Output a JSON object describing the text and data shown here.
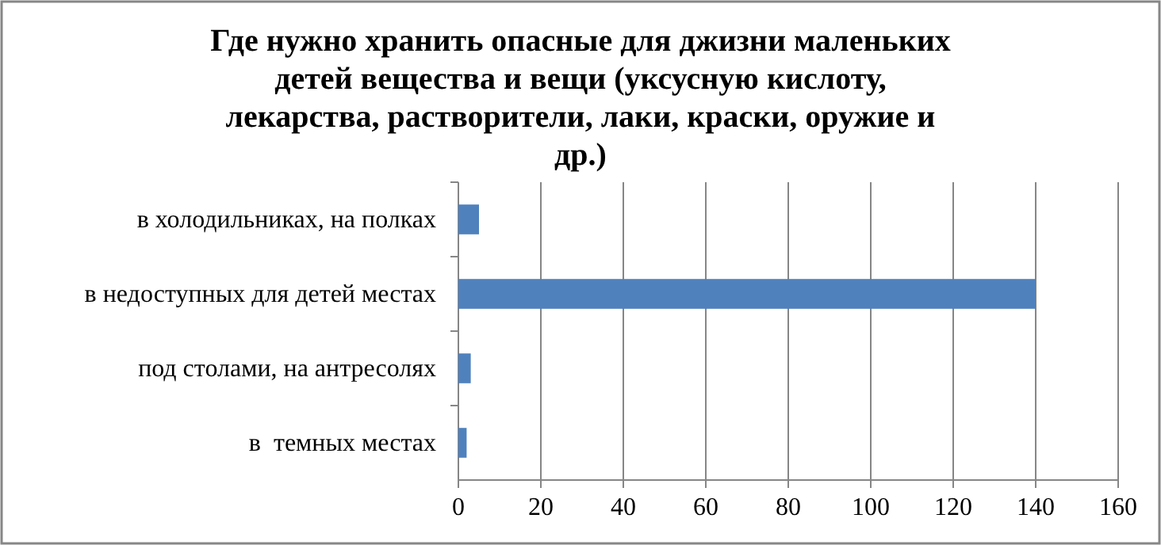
{
  "chart_data": {
    "type": "bar",
    "orientation": "horizontal",
    "title": "Где нужно хранить  опасные для джизни маленьких детей вещества и вещи (уксусную кислоту, лекарства, растворители, лаки, краски, оружие и др.)",
    "categories": [
      "в холодильниках, на полках",
      "в недоступных для детей местах",
      "под столами, на антресолях",
      "в  темных местах"
    ],
    "values": [
      5,
      140,
      3,
      2
    ],
    "color": "#4f81bd",
    "xlim": [
      0,
      160
    ],
    "xticks": [
      0,
      20,
      40,
      60,
      80,
      100,
      120,
      140,
      160
    ],
    "grid": "x"
  }
}
